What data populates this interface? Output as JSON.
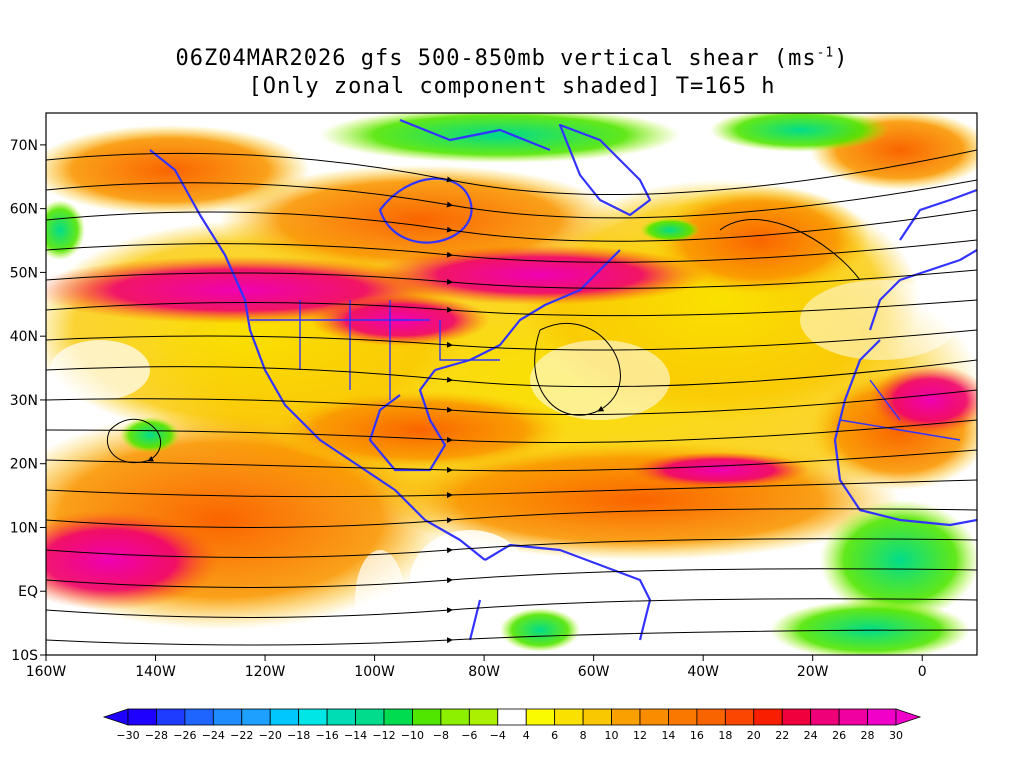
{
  "title": {
    "line1": "06Z04MAR2026 gfs 500-850mb vertical shear (ms-1)",
    "line2": "[Only zonal component shaded] T=165 h"
  },
  "map": {
    "lon_range": [
      -160,
      10
    ],
    "lat_range": [
      -10,
      75
    ],
    "lat_labels": [
      "70N",
      "60N",
      "50N",
      "40N",
      "30N",
      "20N",
      "10N",
      "EQ",
      "10S"
    ],
    "lat_values": [
      70,
      60,
      50,
      40,
      30,
      20,
      10,
      0,
      -10
    ],
    "lon_labels": [
      "160W",
      "140W",
      "120W",
      "100W",
      "80W",
      "60W",
      "40W",
      "20W",
      "0"
    ],
    "lon_values": [
      -160,
      -140,
      -120,
      -100,
      -80,
      -60,
      -40,
      -20,
      0
    ],
    "coastline_color": "#3333ff",
    "streamline_color": "#000000"
  },
  "colorbar": {
    "labels": [
      "-30",
      "-28",
      "-26",
      "-24",
      "-22",
      "-20",
      "-18",
      "-16",
      "-14",
      "-12",
      "-10",
      "-8",
      "-6",
      "-4",
      "4",
      "6",
      "8",
      "10",
      "12",
      "14",
      "16",
      "18",
      "20",
      "22",
      "24",
      "26",
      "28",
      "30"
    ],
    "colors": [
      "#1e00ff",
      "#1e3cff",
      "#1e64ff",
      "#1e8cff",
      "#1ea0ff",
      "#00c8ff",
      "#00e6e6",
      "#00dcb4",
      "#00dc8c",
      "#00dc50",
      "#50e600",
      "#8cf000",
      "#aaf000",
      "#ffffff",
      "#fafa00",
      "#fae100",
      "#fac800",
      "#faa000",
      "#fa8c00",
      "#fa7800",
      "#fa6400",
      "#fa4600",
      "#fa1e00",
      "#f0003c",
      "#f00078",
      "#f000a0",
      "#f000c8"
    ]
  }
}
